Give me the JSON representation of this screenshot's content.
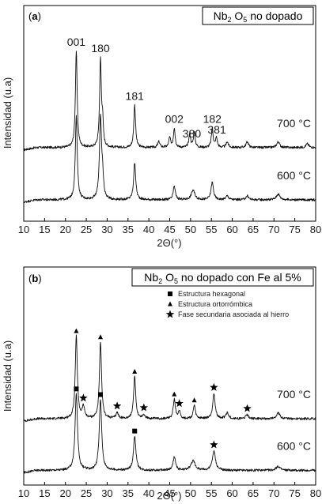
{
  "chart_data": [
    {
      "type": "line",
      "panel": "a",
      "title": {
        "pre": "Nb",
        "sub1": "2",
        "mid": " O",
        "sub2": "5",
        "post": " no dopado"
      },
      "xlabel": "2Θ(°)",
      "ylabel": "Intensidad (u.a)",
      "xlim": [
        10,
        80
      ],
      "xticks": [
        "10",
        "15",
        "20",
        "25",
        "30",
        "35",
        "40",
        "45",
        "50",
        "55",
        "60",
        "65",
        "70",
        "75",
        "80"
      ],
      "series": [
        {
          "name": "700 °C",
          "baseline": 0.36,
          "peaks": [
            {
              "x": 22.6,
              "h": 0.5,
              "w": 0.25
            },
            {
              "x": 28.4,
              "h": 0.45,
              "w": 0.25
            },
            {
              "x": 28.9,
              "h": 0.12,
              "w": 0.2
            },
            {
              "x": 36.6,
              "h": 0.22,
              "w": 0.25
            },
            {
              "x": 42.4,
              "h": 0.03,
              "w": 0.3
            },
            {
              "x": 45.0,
              "h": 0.05,
              "w": 0.25
            },
            {
              "x": 46.1,
              "h": 0.1,
              "w": 0.25
            },
            {
              "x": 49.8,
              "h": 0.07,
              "w": 0.25
            },
            {
              "x": 50.9,
              "h": 0.08,
              "w": 0.25
            },
            {
              "x": 55.2,
              "h": 0.1,
              "w": 0.25
            },
            {
              "x": 56.2,
              "h": 0.05,
              "w": 0.25
            },
            {
              "x": 58.8,
              "h": 0.03,
              "w": 0.3
            },
            {
              "x": 63.6,
              "h": 0.03,
              "w": 0.35
            },
            {
              "x": 71.0,
              "h": 0.03,
              "w": 0.4
            },
            {
              "x": 78.0,
              "h": 0.02,
              "w": 0.4
            }
          ]
        },
        {
          "name": "600 °C",
          "baseline": 0.09,
          "peaks": [
            {
              "x": 22.6,
              "h": 0.43,
              "w": 0.28
            },
            {
              "x": 28.4,
              "h": 0.42,
              "w": 0.3
            },
            {
              "x": 28.9,
              "h": 0.1,
              "w": 0.25
            },
            {
              "x": 36.6,
              "h": 0.19,
              "w": 0.3
            },
            {
              "x": 46.1,
              "h": 0.07,
              "w": 0.3
            },
            {
              "x": 50.6,
              "h": 0.05,
              "w": 0.5
            },
            {
              "x": 55.2,
              "h": 0.09,
              "w": 0.35
            },
            {
              "x": 58.8,
              "h": 0.02,
              "w": 0.4
            },
            {
              "x": 63.6,
              "h": 0.02,
              "w": 0.4
            },
            {
              "x": 71.0,
              "h": 0.03,
              "w": 0.5
            }
          ]
        }
      ],
      "annotations": [
        {
          "label": "001",
          "x": 22.6
        },
        {
          "label": "180",
          "x": 28.4
        },
        {
          "label": "181",
          "x": 36.6
        },
        {
          "label": "002",
          "x": 46.1
        },
        {
          "label": "380",
          "x": 50.3
        },
        {
          "label": "182",
          "x": 55.2
        },
        {
          "label": "381",
          "x": 56.3
        }
      ]
    },
    {
      "type": "line",
      "panel": "b",
      "title": {
        "pre": "Nb",
        "sub1": "2",
        "mid": " O",
        "sub2": "5",
        "post": " no dopado con Fe al 5%"
      },
      "xlabel": "2Θ(°)",
      "ylabel": "Intensidad (u.a)",
      "xlim": [
        10,
        80
      ],
      "xticks": [
        "10",
        "15",
        "20",
        "25",
        "30",
        "35",
        "40",
        "45",
        "50",
        "55",
        "60",
        "65",
        "70",
        "75",
        "80"
      ],
      "legend": [
        {
          "marker": "square",
          "label": "Estructura hexagonal"
        },
        {
          "marker": "triangle",
          "label": "Estructura ortorrómbica"
        },
        {
          "marker": "star",
          "label": "Fase secundaria asociada al hierro"
        }
      ],
      "series": [
        {
          "name": "700 °C",
          "baseline": 0.33,
          "peaks": [
            {
              "x": 22.6,
              "h": 0.43,
              "w": 0.3
            },
            {
              "x": 24.3,
              "h": 0.06,
              "w": 0.35
            },
            {
              "x": 28.4,
              "h": 0.4,
              "w": 0.3
            },
            {
              "x": 32.4,
              "h": 0.03,
              "w": 0.35
            },
            {
              "x": 36.6,
              "h": 0.22,
              "w": 0.3
            },
            {
              "x": 38.8,
              "h": 0.02,
              "w": 0.35
            },
            {
              "x": 46.1,
              "h": 0.1,
              "w": 0.3
            },
            {
              "x": 47.3,
              "h": 0.04,
              "w": 0.3
            },
            {
              "x": 50.9,
              "h": 0.07,
              "w": 0.3
            },
            {
              "x": 55.6,
              "h": 0.13,
              "w": 0.35
            },
            {
              "x": 58.8,
              "h": 0.03,
              "w": 0.4
            },
            {
              "x": 63.6,
              "h": 0.02,
              "w": 0.4
            },
            {
              "x": 71.0,
              "h": 0.03,
              "w": 0.5
            }
          ],
          "markers": [
            {
              "x": 22.6,
              "type": "triangle"
            },
            {
              "x": 24.3,
              "type": "star"
            },
            {
              "x": 28.4,
              "type": "triangle"
            },
            {
              "x": 32.4,
              "type": "star"
            },
            {
              "x": 36.6,
              "type": "triangle"
            },
            {
              "x": 38.8,
              "type": "star"
            },
            {
              "x": 46.1,
              "type": "triangle"
            },
            {
              "x": 47.3,
              "type": "star"
            },
            {
              "x": 50.9,
              "type": "triangle"
            },
            {
              "x": 55.6,
              "type": "star"
            },
            {
              "x": 63.6,
              "type": "star"
            }
          ]
        },
        {
          "name": "600 °C",
          "baseline": 0.06,
          "peaks": [
            {
              "x": 22.6,
              "h": 0.4,
              "w": 0.35
            },
            {
              "x": 28.4,
              "h": 0.37,
              "w": 0.35
            },
            {
              "x": 36.6,
              "h": 0.18,
              "w": 0.35
            },
            {
              "x": 46.1,
              "h": 0.07,
              "w": 0.35
            },
            {
              "x": 50.6,
              "h": 0.05,
              "w": 0.6
            },
            {
              "x": 55.6,
              "h": 0.1,
              "w": 0.45
            },
            {
              "x": 71.0,
              "h": 0.02,
              "w": 0.6
            }
          ],
          "markers": [
            {
              "x": 22.6,
              "type": "square"
            },
            {
              "x": 28.4,
              "type": "square"
            },
            {
              "x": 36.6,
              "type": "square"
            },
            {
              "x": 55.6,
              "type": "star"
            }
          ]
        }
      ]
    }
  ]
}
